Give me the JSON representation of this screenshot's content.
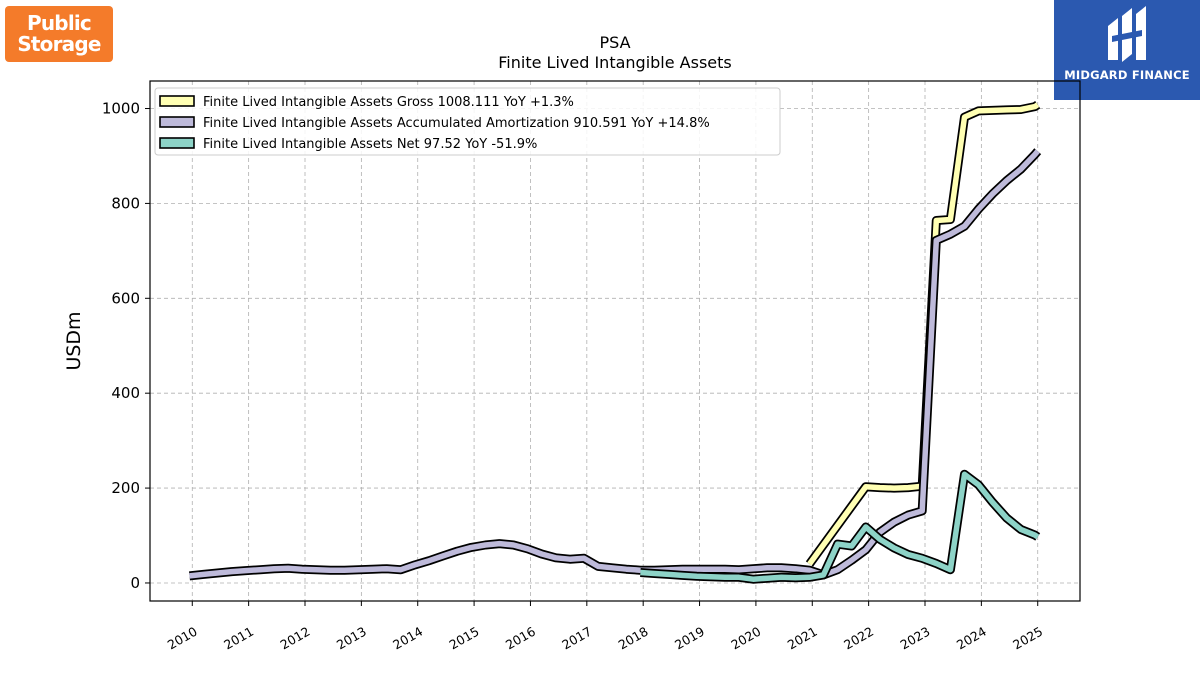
{
  "branding": {
    "company_logo": [
      "Public",
      "Storage"
    ],
    "company_color": "#f47b2a",
    "publisher_name": "MIDGARD FINANCE",
    "publisher_color": "#2b59b0"
  },
  "chart_data": {
    "type": "line",
    "title": "PSA",
    "subtitle": "Finite Lived Intangible Assets",
    "xlabel": "",
    "ylabel": "USDm",
    "xlim": [
      2009.25,
      2025.75
    ],
    "ylim": [
      -38,
      1058
    ],
    "yticks": [
      0,
      200,
      400,
      600,
      800,
      1000
    ],
    "xticks": [
      2010,
      2011,
      2012,
      2013,
      2014,
      2015,
      2016,
      2017,
      2018,
      2019,
      2020,
      2021,
      2022,
      2023,
      2024,
      2025
    ],
    "grid": true,
    "legend_position": "top-left",
    "series": [
      {
        "name": "Finite Lived Intangible Assets Gross",
        "legend": "Finite Lived Intangible Assets Gross  1008.111 YoY +1.3%",
        "color": "#ffffb3",
        "x": [
          2020.95,
          2021.95,
          2022.2,
          2022.45,
          2022.7,
          2022.95,
          2023.2,
          2023.45,
          2023.7,
          2023.95,
          2024.2,
          2024.45,
          2024.7,
          2024.95,
          2025.0
        ],
        "y": [
          40,
          203,
          201,
          200,
          201,
          204,
          764,
          766,
          982,
          995,
          996,
          997,
          998,
          1004,
          1008
        ]
      },
      {
        "name": "Finite Lived Intangible Assets Accumulated Amortization",
        "legend": "Finite Lived Intangible Assets Accumulated Amortization  910.591 YoY +14.8%",
        "color": "#bebada",
        "x": [
          2009.95,
          2010.2,
          2010.45,
          2010.7,
          2010.95,
          2011.2,
          2011.45,
          2011.7,
          2011.95,
          2012.2,
          2012.45,
          2012.7,
          2012.95,
          2013.2,
          2013.45,
          2013.7,
          2013.95,
          2014.2,
          2014.45,
          2014.7,
          2014.95,
          2015.2,
          2015.45,
          2015.7,
          2015.95,
          2016.2,
          2016.45,
          2016.7,
          2016.95,
          2017.2,
          2017.45,
          2017.7,
          2017.95,
          2018.2,
          2018.45,
          2018.7,
          2018.95,
          2019.2,
          2019.45,
          2019.7,
          2019.95,
          2020.2,
          2020.45,
          2020.7,
          2020.95,
          2021.2,
          2021.45,
          2021.7,
          2021.95,
          2022.2,
          2022.45,
          2022.7,
          2022.95,
          2023.2,
          2023.45,
          2023.7,
          2023.95,
          2024.2,
          2024.45,
          2024.7,
          2024.95,
          2025.0
        ],
        "y": [
          15,
          18,
          21,
          24,
          26,
          28,
          30,
          31,
          29,
          28,
          27,
          27,
          28,
          29,
          30,
          28,
          38,
          47,
          57,
          67,
          75,
          80,
          83,
          80,
          72,
          61,
          53,
          50,
          52,
          35,
          32,
          29,
          27,
          27,
          28,
          29,
          29,
          29,
          29,
          28,
          30,
          32,
          32,
          30,
          27,
          17,
          28,
          48,
          70,
          107,
          128,
          143,
          152,
          722,
          735,
          752,
          788,
          820,
          848,
          872,
          903,
          910
        ]
      },
      {
        "name": "Finite Lived Intangible Assets Net",
        "legend": "Finite Lived Intangible Assets Net  97.52 YoY -51.9%",
        "color": "#8dd3c7",
        "x": [
          2017.95,
          2018.2,
          2018.45,
          2018.7,
          2018.95,
          2019.2,
          2019.45,
          2019.7,
          2019.95,
          2020.2,
          2020.45,
          2020.7,
          2020.95,
          2021.2,
          2021.45,
          2021.7,
          2021.95,
          2022.2,
          2022.45,
          2022.7,
          2022.95,
          2023.2,
          2023.45,
          2023.7,
          2023.95,
          2024.2,
          2024.45,
          2024.7,
          2024.95,
          2025.0
        ],
        "y": [
          22,
          20,
          18,
          16,
          14,
          13,
          12,
          12,
          8,
          10,
          12,
          11,
          12,
          17,
          82,
          78,
          118,
          92,
          74,
          60,
          52,
          41,
          28,
          229,
          207,
          170,
          137,
          113,
          101,
          97
        ]
      }
    ]
  }
}
